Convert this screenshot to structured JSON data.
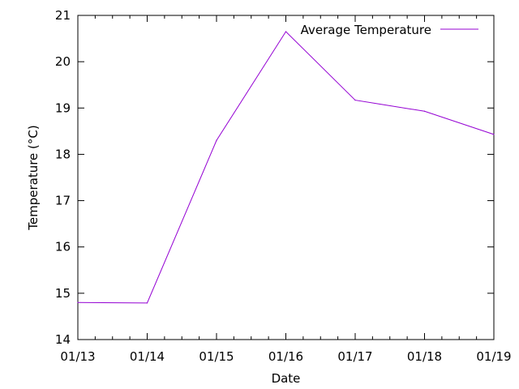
{
  "chart_data": {
    "type": "line",
    "title": "",
    "xlabel": "Date",
    "ylabel": "Temperature (°C)",
    "x": [
      "01/13",
      "01/14",
      "01/15",
      "01/16",
      "01/17",
      "01/18",
      "01/19"
    ],
    "ylim": [
      14,
      21
    ],
    "y_ticks": [
      14,
      15,
      16,
      17,
      18,
      19,
      20,
      21
    ],
    "series": [
      {
        "name": "Average Temperature",
        "color": "#9400d3",
        "points": [
          {
            "x": "01/13",
            "y": 14.8
          },
          {
            "x": "01/14",
            "y": 14.79
          },
          {
            "x": "01/15",
            "y": 18.3
          },
          {
            "x": "01/16",
            "y": 20.65
          },
          {
            "x": "01/17",
            "y": 19.17
          },
          {
            "x": "01/18",
            "y": 18.93
          },
          {
            "x": "01/19",
            "y": 18.43
          }
        ]
      }
    ],
    "grid": false,
    "legend": "top-right"
  }
}
